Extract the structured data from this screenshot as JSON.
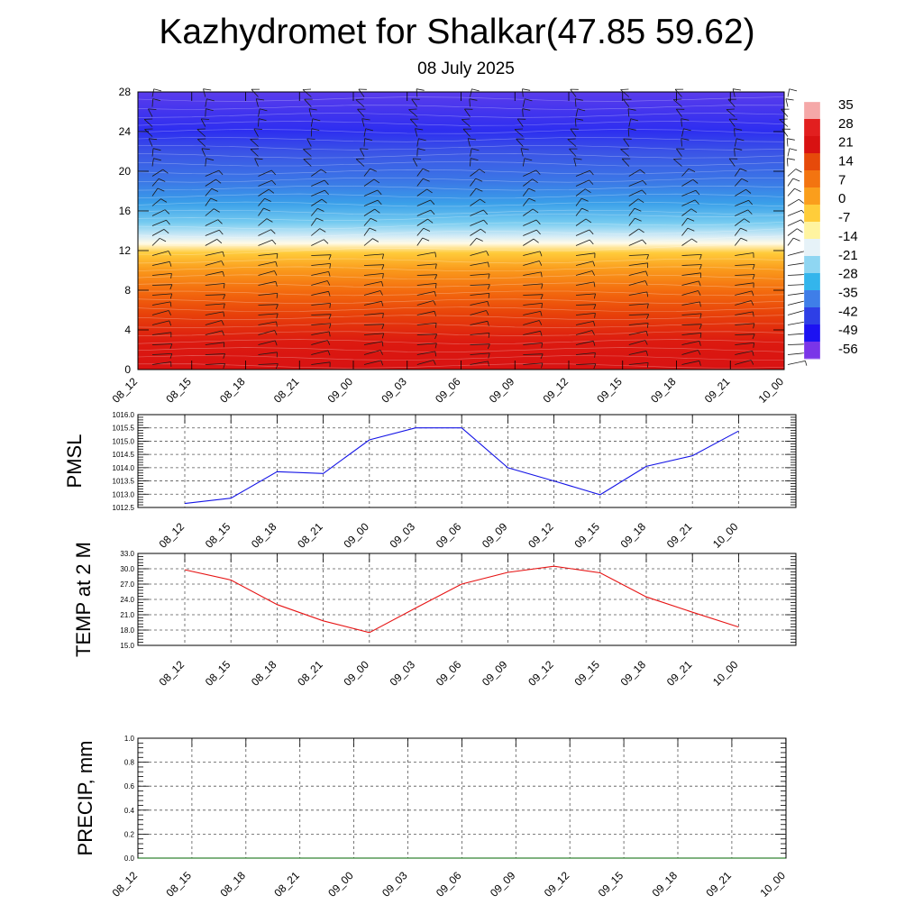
{
  "header": {
    "title": "Kazhydromet for Shalkar(47.85 59.62)",
    "subtitle": "08 July 2025"
  },
  "colorbar": {
    "labels": [
      "35",
      "28",
      "21",
      "14",
      "7",
      "0",
      "-7",
      "-14",
      "-21",
      "-28",
      "-35",
      "-42",
      "-49",
      "-56"
    ],
    "colors": [
      "#f5a8a8",
      "#e21f1f",
      "#d81212",
      "#e64a0a",
      "#f37410",
      "#fa9e1c",
      "#ffcd3a",
      "#fff4a0",
      "#e6f2f8",
      "#8fd6f2",
      "#33b5ec",
      "#3f7ee8",
      "#2e3fe6",
      "#1c12f2",
      "#7a35e8"
    ]
  },
  "chart_data": [
    {
      "type": "heatmap",
      "name": "temperature-wind cross-section",
      "x": [
        "08_12",
        "08_15",
        "08_18",
        "08_21",
        "09_00",
        "09_03",
        "09_06",
        "09_09",
        "09_12",
        "09_15",
        "09_18",
        "09_21",
        "10_00"
      ],
      "y_ticks": [
        "0",
        "4",
        "8",
        "12",
        "16",
        "20",
        "24",
        "28"
      ],
      "ylim": [
        0,
        28
      ],
      "value_range": [
        -56,
        35
      ],
      "levels_temperature": [
        {
          "level": 0,
          "value": 30
        },
        {
          "level": 2,
          "value": 28
        },
        {
          "level": 4,
          "value": 24
        },
        {
          "level": 6,
          "value": 18
        },
        {
          "level": 8,
          "value": 12
        },
        {
          "level": 10,
          "value": 4
        },
        {
          "level": 12,
          "value": -6
        },
        {
          "level": 13,
          "value": -14
        },
        {
          "level": 14,
          "value": -22
        },
        {
          "level": 16,
          "value": -33
        },
        {
          "level": 18,
          "value": -42
        },
        {
          "level": 20,
          "value": -48
        },
        {
          "level": 22,
          "value": -53
        },
        {
          "level": 24,
          "value": -56
        },
        {
          "level": 28,
          "value": -58
        }
      ],
      "wind_barbs": true
    },
    {
      "type": "line",
      "name": "PMSL",
      "ylabel": "PMSL",
      "x": [
        "08_12",
        "08_15",
        "08_18",
        "08_21",
        "09_00",
        "09_03",
        "09_06",
        "09_09",
        "09_12",
        "09_15",
        "09_18",
        "09_21",
        "10_00"
      ],
      "y_ticks": [
        "1012.5",
        "1013.0",
        "1013.5",
        "1014.0",
        "1014.5",
        "1015.0",
        "1015.5",
        "1016.0"
      ],
      "ylim": [
        1012.5,
        1016.0
      ],
      "values": [
        1012.65,
        1012.85,
        1013.85,
        1013.78,
        1015.05,
        1015.5,
        1015.5,
        1014.0,
        1013.5,
        1012.98,
        1014.05,
        1014.45,
        1015.38
      ],
      "color": "#1414e6",
      "grid": true
    },
    {
      "type": "line",
      "name": "TEMP at 2 M",
      "ylabel": "TEMP at 2 M",
      "x": [
        "08_12",
        "08_15",
        "08_18",
        "08_21",
        "09_00",
        "09_03",
        "09_06",
        "09_09",
        "09_12",
        "09_15",
        "09_18",
        "09_21",
        "10_00"
      ],
      "y_ticks": [
        "15.0",
        "18.0",
        "21.0",
        "24.0",
        "27.0",
        "30.0",
        "33.0"
      ],
      "ylim": [
        15.0,
        33.0
      ],
      "values": [
        29.8,
        27.8,
        23.0,
        19.8,
        17.5,
        22.3,
        27.0,
        29.3,
        30.5,
        29.2,
        24.5,
        21.5,
        18.6
      ],
      "color": "#e61414",
      "grid": true
    },
    {
      "type": "line",
      "name": "PRECIP, mm",
      "ylabel": "PRECIP, mm",
      "x": [
        "08_12",
        "08_15",
        "08_18",
        "08_21",
        "09_00",
        "09_03",
        "09_06",
        "09_09",
        "09_12",
        "09_15",
        "09_18",
        "09_21",
        "10_00"
      ],
      "y_ticks": [
        "0.0",
        "0.2",
        "0.4",
        "0.6",
        "0.8",
        "1.0"
      ],
      "ylim": [
        0.0,
        1.0
      ],
      "values": [
        0,
        0,
        0,
        0,
        0,
        0,
        0,
        0,
        0,
        0,
        0,
        0,
        0
      ],
      "color": "#006400",
      "grid": true
    }
  ]
}
